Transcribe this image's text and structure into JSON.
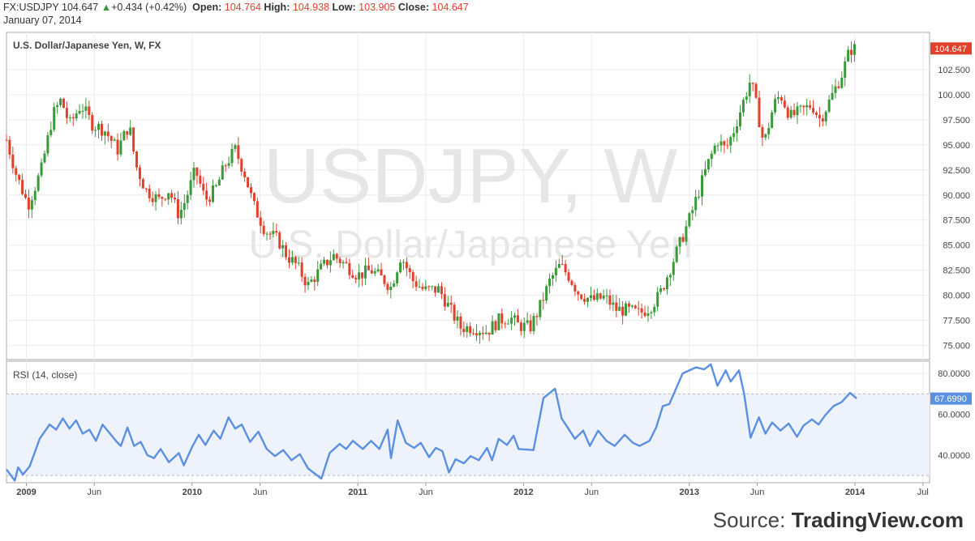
{
  "header": {
    "symbol": "FX:USDJPY",
    "last": "104.647",
    "change_arrow": "▲",
    "change": "+0.434 (+0.42%)",
    "open_label": "Open:",
    "open": "104.764",
    "high_label": "High:",
    "high": "104.938",
    "low_label": "Low:",
    "low": "103.905",
    "close_label": "Close:",
    "close": "104.647",
    "date": "January 07, 2014"
  },
  "colors": {
    "up": "#3a9a3a",
    "down": "#e0412d",
    "rsi_line": "#5b8fe0",
    "rsi_band": "#eef3fb",
    "watermark": "#e6e6e6",
    "grid": "#ececec"
  },
  "source": {
    "prefix": "Source: ",
    "brand": "TradingView.com"
  },
  "chart_data": [
    {
      "type": "candlestick",
      "title": "U.S. Dollar/Japanese Yen, W, FX",
      "watermark_line1": "USDJPY, W",
      "watermark_line2": "U.S. Dollar/Japanese Yen",
      "ylim": [
        73.6,
        106.2
      ],
      "y_ticks": [
        "75.000",
        "77.500",
        "80.000",
        "82.500",
        "85.000",
        "87.500",
        "90.000",
        "92.500",
        "95.000",
        "97.500",
        "100.000",
        "102.500"
      ],
      "price_label": "104.647",
      "x_labels": [
        "2009",
        "Jun",
        "2010",
        "Jun",
        "2011",
        "Jun",
        "2012",
        "Jun",
        "2013",
        "Jun",
        "2014",
        "Jul"
      ],
      "x_label_values": [
        2009.0,
        2009.41,
        2010.0,
        2010.41,
        2011.0,
        2011.41,
        2012.0,
        2012.41,
        2013.0,
        2013.41,
        2014.0,
        2014.41
      ],
      "x_range": [
        2008.88,
        2014.45
      ],
      "anchors": [
        [
          2008.88,
          95.5
        ],
        [
          2008.94,
          92.0
        ],
        [
          2009.01,
          89.0
        ],
        [
          2009.09,
          92.5
        ],
        [
          2009.16,
          98.0
        ],
        [
          2009.21,
          99.5
        ],
        [
          2009.26,
          97.0
        ],
        [
          2009.33,
          99.0
        ],
        [
          2009.4,
          97.0
        ],
        [
          2009.47,
          96.5
        ],
        [
          2009.55,
          94.5
        ],
        [
          2009.62,
          97.0
        ],
        [
          2009.66,
          93.0
        ],
        [
          2009.72,
          90.5
        ],
        [
          2009.8,
          89.5
        ],
        [
          2009.86,
          90.5
        ],
        [
          2009.92,
          88.0
        ],
        [
          2009.96,
          89.5
        ],
        [
          2010.02,
          92.5
        ],
        [
          2010.08,
          89.5
        ],
        [
          2010.14,
          90.5
        ],
        [
          2010.2,
          93.0
        ],
        [
          2010.26,
          94.5
        ],
        [
          2010.32,
          92.0
        ],
        [
          2010.37,
          89.0
        ],
        [
          2010.44,
          86.5
        ],
        [
          2010.52,
          85.5
        ],
        [
          2010.57,
          84.0
        ],
        [
          2010.63,
          83.0
        ],
        [
          2010.7,
          81.0
        ],
        [
          2010.77,
          82.5
        ],
        [
          2010.85,
          84.0
        ],
        [
          2010.93,
          83.0
        ],
        [
          2011.0,
          82.0
        ],
        [
          2011.08,
          82.5
        ],
        [
          2011.16,
          81.5
        ],
        [
          2011.2,
          80.8
        ],
        [
          2011.26,
          84.0
        ],
        [
          2011.33,
          81.5
        ],
        [
          2011.4,
          80.5
        ],
        [
          2011.49,
          80.6
        ],
        [
          2011.56,
          78.5
        ],
        [
          2011.62,
          76.8
        ],
        [
          2011.7,
          76.8
        ],
        [
          2011.78,
          76.4
        ],
        [
          2011.85,
          77.5
        ],
        [
          2011.92,
          77.8
        ],
        [
          2011.97,
          77.0
        ],
        [
          2012.04,
          76.8
        ],
        [
          2012.09,
          78.5
        ],
        [
          2012.16,
          81.5
        ],
        [
          2012.22,
          83.0
        ],
        [
          2012.27,
          82.0
        ],
        [
          2012.33,
          80.3
        ],
        [
          2012.41,
          79.5
        ],
        [
          2012.49,
          79.8
        ],
        [
          2012.56,
          78.6
        ],
        [
          2012.63,
          78.5
        ],
        [
          2012.7,
          78.2
        ],
        [
          2012.76,
          78.8
        ],
        [
          2012.82,
          80.0
        ],
        [
          2012.88,
          82.5
        ],
        [
          2012.94,
          85.0
        ],
        [
          2013.01,
          88.0
        ],
        [
          2013.06,
          90.5
        ],
        [
          2013.11,
          93.0
        ],
        [
          2013.17,
          95.5
        ],
        [
          2013.22,
          94.5
        ],
        [
          2013.27,
          96.5
        ],
        [
          2013.33,
          99.5
        ],
        [
          2013.37,
          101.5
        ],
        [
          2013.41,
          98.5
        ],
        [
          2013.45,
          95.0
        ],
        [
          2013.51,
          99.0
        ],
        [
          2013.55,
          100.0
        ],
        [
          2013.61,
          97.8
        ],
        [
          2013.67,
          98.3
        ],
        [
          2013.74,
          99.0
        ],
        [
          2013.79,
          97.5
        ],
        [
          2013.85,
          99.5
        ],
        [
          2013.92,
          102.0
        ],
        [
          2013.97,
          104.5
        ],
        [
          2014.01,
          104.6
        ]
      ]
    },
    {
      "type": "line",
      "title": "RSI (14, close)",
      "ylim": [
        26.5,
        86.0
      ],
      "y_ticks": [
        "40.0000",
        "60.0000",
        "80.0000"
      ],
      "band": [
        30,
        70
      ],
      "value_label": "67.6990",
      "last_value": 67.699,
      "anchors": [
        [
          2008.88,
          33.0
        ],
        [
          2008.93,
          27.5
        ],
        [
          2008.95,
          34.0
        ],
        [
          2008.98,
          30.5
        ],
        [
          2009.02,
          34.5
        ],
        [
          2009.08,
          48.0
        ],
        [
          2009.14,
          55.0
        ],
        [
          2009.18,
          52.5
        ],
        [
          2009.22,
          58.0
        ],
        [
          2009.26,
          53.0
        ],
        [
          2009.3,
          57.0
        ],
        [
          2009.34,
          50.5
        ],
        [
          2009.38,
          52.5
        ],
        [
          2009.42,
          47.0
        ],
        [
          2009.46,
          55.0
        ],
        [
          2009.5,
          51.0
        ],
        [
          2009.54,
          47.0
        ],
        [
          2009.57,
          44.5
        ],
        [
          2009.61,
          53.5
        ],
        [
          2009.65,
          44.5
        ],
        [
          2009.69,
          46.5
        ],
        [
          2009.73,
          40.0
        ],
        [
          2009.77,
          38.5
        ],
        [
          2009.81,
          43.0
        ],
        [
          2009.86,
          36.5
        ],
        [
          2009.92,
          41.0
        ],
        [
          2009.95,
          35.0
        ],
        [
          2010.0,
          44.0
        ],
        [
          2010.04,
          50.0
        ],
        [
          2010.08,
          45.0
        ],
        [
          2010.13,
          52.0
        ],
        [
          2010.17,
          48.0
        ],
        [
          2010.22,
          58.5
        ],
        [
          2010.26,
          53.0
        ],
        [
          2010.3,
          55.0
        ],
        [
          2010.35,
          46.5
        ],
        [
          2010.4,
          51.5
        ],
        [
          2010.45,
          43.0
        ],
        [
          2010.5,
          39.5
        ],
        [
          2010.55,
          42.5
        ],
        [
          2010.6,
          37.5
        ],
        [
          2010.65,
          40.5
        ],
        [
          2010.7,
          33.5
        ],
        [
          2010.78,
          28.5
        ],
        [
          2010.83,
          41.0
        ],
        [
          2010.89,
          45.5
        ],
        [
          2010.93,
          43.0
        ],
        [
          2010.97,
          47.0
        ],
        [
          2011.03,
          43.0
        ],
        [
          2011.08,
          47.0
        ],
        [
          2011.13,
          43.0
        ],
        [
          2011.18,
          52.5
        ],
        [
          2011.2,
          38.5
        ],
        [
          2011.24,
          57.0
        ],
        [
          2011.29,
          46.0
        ],
        [
          2011.34,
          43.5
        ],
        [
          2011.38,
          46.0
        ],
        [
          2011.43,
          39.0
        ],
        [
          2011.47,
          43.5
        ],
        [
          2011.51,
          42.0
        ],
        [
          2011.55,
          31.5
        ],
        [
          2011.59,
          38.0
        ],
        [
          2011.64,
          36.0
        ],
        [
          2011.68,
          39.5
        ],
        [
          2011.73,
          37.5
        ],
        [
          2011.78,
          43.5
        ],
        [
          2011.81,
          37.5
        ],
        [
          2011.85,
          48.0
        ],
        [
          2011.9,
          45.0
        ],
        [
          2011.94,
          49.5
        ],
        [
          2011.97,
          43.0
        ],
        [
          2012.06,
          42.5
        ],
        [
          2012.12,
          68.0
        ],
        [
          2012.19,
          72.5
        ],
        [
          2012.23,
          58.0
        ],
        [
          2012.27,
          53.0
        ],
        [
          2012.31,
          48.0
        ],
        [
          2012.36,
          52.0
        ],
        [
          2012.4,
          44.5
        ],
        [
          2012.45,
          52.0
        ],
        [
          2012.5,
          47.0
        ],
        [
          2012.55,
          44.5
        ],
        [
          2012.61,
          50.0
        ],
        [
          2012.66,
          46.0
        ],
        [
          2012.7,
          44.5
        ],
        [
          2012.76,
          47.0
        ],
        [
          2012.8,
          53.5
        ],
        [
          2012.84,
          64.0
        ],
        [
          2012.88,
          65.0
        ],
        [
          2012.96,
          80.0
        ],
        [
          2013.04,
          83.0
        ],
        [
          2013.09,
          82.0
        ],
        [
          2013.13,
          84.5
        ],
        [
          2013.17,
          74.0
        ],
        [
          2013.22,
          81.5
        ],
        [
          2013.25,
          76.0
        ],
        [
          2013.3,
          81.5
        ],
        [
          2013.33,
          70.5
        ],
        [
          2013.37,
          48.5
        ],
        [
          2013.42,
          58.5
        ],
        [
          2013.46,
          50.5
        ],
        [
          2013.5,
          56.0
        ],
        [
          2013.55,
          52.0
        ],
        [
          2013.6,
          55.5
        ],
        [
          2013.65,
          49.0
        ],
        [
          2013.69,
          54.5
        ],
        [
          2013.74,
          57.5
        ],
        [
          2013.78,
          55.0
        ],
        [
          2013.82,
          59.5
        ],
        [
          2013.87,
          64.0
        ],
        [
          2013.92,
          66.0
        ],
        [
          2013.97,
          70.5
        ],
        [
          2014.01,
          67.7
        ]
      ]
    }
  ]
}
